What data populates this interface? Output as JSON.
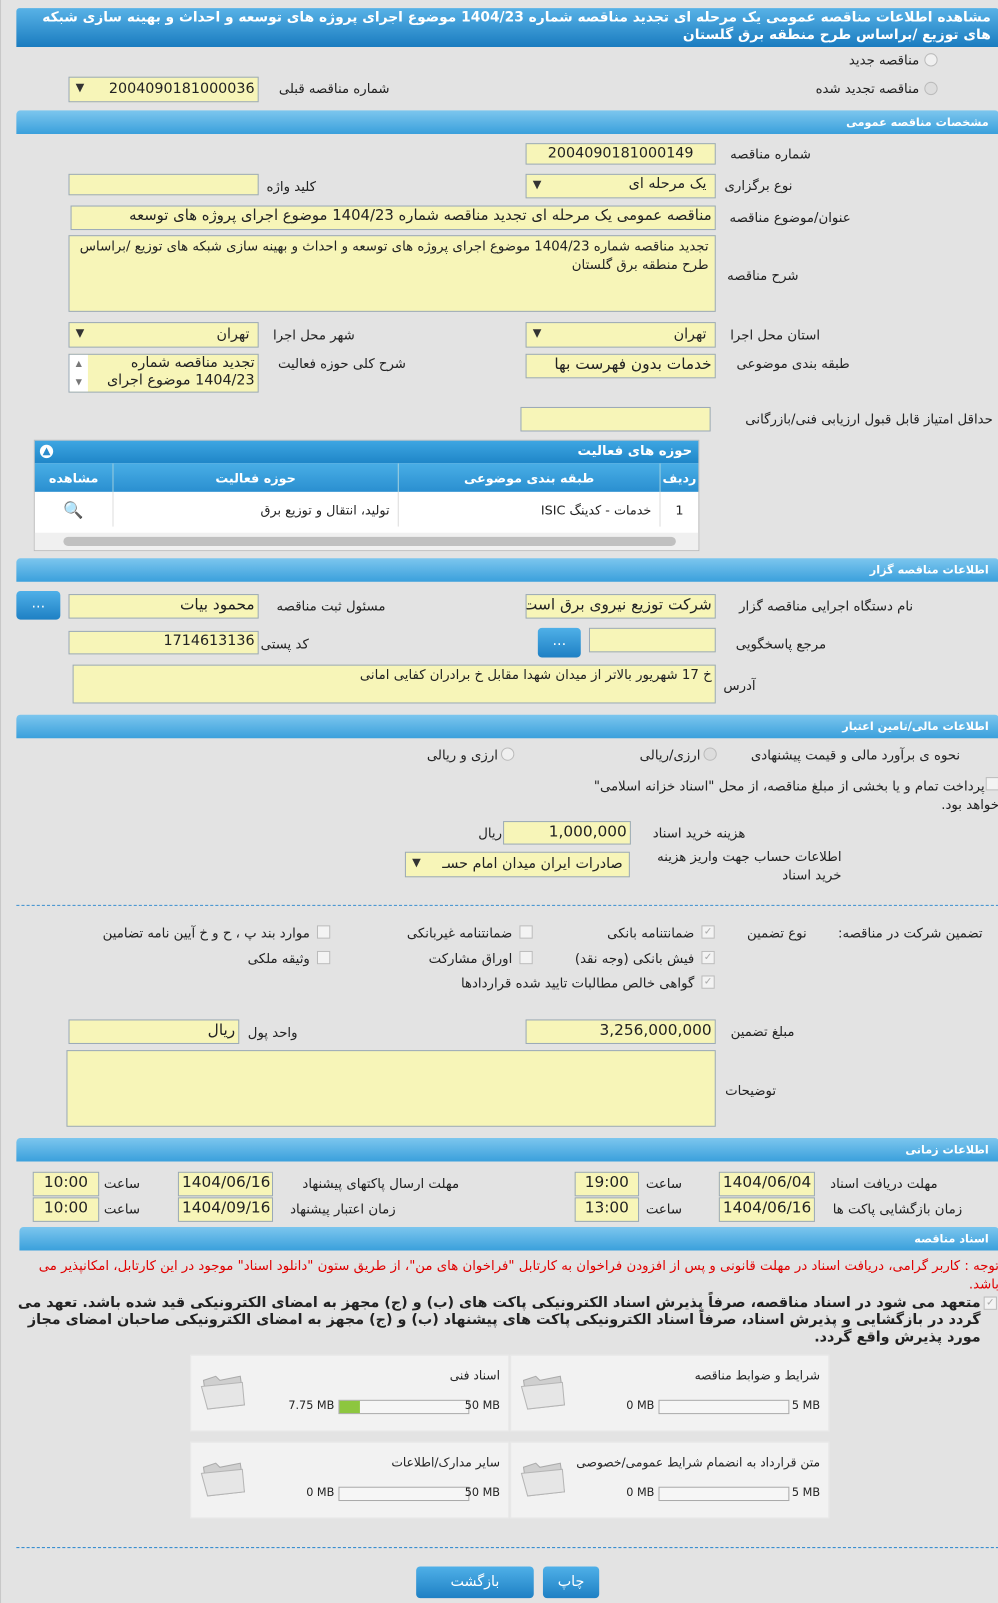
{
  "header": {
    "title": "مشاهده اطلاعات مناقصه عمومی یک مرحله ای تجدید مناقصه شماره 1404/23 موضوع اجرای پروژه های توسعه و احداث و بهینه سازی شبکه های توزیع /براساس طرح منطقه برق گلستان"
  },
  "tender_type": {
    "new_label": "مناقصه جدید",
    "renewed_label": "مناقصه تجدید شده",
    "selected": "renewed",
    "prev_number_label": "شماره مناقصه قبلی",
    "prev_number": "2004090181000036"
  },
  "general": {
    "section": "مشخصات مناقصه عمومی",
    "number_label": "شماره مناقصه",
    "number": "2004090181000149",
    "type_label": "نوع برگزاری",
    "type": "یک مرحله ای",
    "keyword_label": "کلید واژه",
    "keyword": "",
    "subject_label": "عنوان/موضوع مناقصه",
    "subject": "مناقصه عمومی یک مرحله ای تجدید مناقصه شماره 1404/23 موضوع اجرای پروژه های توسعه",
    "desc_label": "شرح مناقصه",
    "desc": "تجدید مناقصه شماره 1404/23 موضوع اجرای پروژه های توسعه و احداث و بهینه سازی شبکه های توزیع /براساس طرح منطقه برق گلستان",
    "province_label": "استان محل اجرا",
    "province": "تهران",
    "city_label": "شهر محل اجرا",
    "city": "تهران",
    "category_label": "طبقه بندی موضوعی",
    "category": "خدمات بدون فهرست بها",
    "activity_desc_label": "شرح کلی حوزه فعالیت",
    "activity_desc_line1": "تجدید مناقصه شماره",
    "activity_desc_line2": "1404/23 موضوع اجرای",
    "min_score_label": "حداقل امتیاز قابل قبول ارزیابی فنی/بازرگانی",
    "min_score": ""
  },
  "activities": {
    "title": "حوزه های فعالیت",
    "columns": [
      "ردیف",
      "طبقه بندی موضوعی",
      "حوزه فعالیت",
      "مشاهده"
    ],
    "rows": [
      {
        "idx": "1",
        "category": "خدمات - کدینگ ISIC",
        "field": "تولید، انتقال و توزیع برق"
      }
    ]
  },
  "organizer": {
    "section": "اطلاعات مناقصه گزار",
    "org_label": "نام دستگاه اجرایی مناقصه گزار",
    "org": "شرکت توزیع نیروی برق است",
    "officer_label": "مسئول ثبت مناقصه",
    "officer": "محمود  بیات",
    "ref_label": "مرجع پاسخگویی",
    "ref": "",
    "postal_label": "کد پستی",
    "postal": "1714613136",
    "address_label": "آدرس",
    "address": "خ 17 شهریور بالاتر از میدان شهدا مقابل خ برادران کفایی امانی",
    "more_button": "..."
  },
  "finance": {
    "section": "اطلاعات مالی/تامین اعتبار",
    "estimate_label": "نحوه ی برآورد مالی و قیمت پیشنهادی",
    "opt1": "ارزی/ریالی",
    "opt2": "ارزی و ریالی",
    "treasury_text": "پرداخت تمام و یا بخشی از مبلغ مناقصه، از محل \"اسناد خزانه اسلامی\"",
    "treasury_text2": "خواهد بود.",
    "doc_fee_label": "هزینه خرید اسناد",
    "doc_fee": "1,000,000",
    "doc_fee_unit": "ریال",
    "account_label": "اطلاعات حساب جهت واریز هزینه خرید اسناد",
    "account": "صادرات ایران میدان امام حسـ"
  },
  "guarantee": {
    "label": "تضمین شرکت در مناقصه:",
    "type_label": "نوع تضمین",
    "options": [
      {
        "label": "ضمانتنامه بانکی",
        "checked": true
      },
      {
        "label": "ضمانتنامه غیربانکی",
        "checked": false
      },
      {
        "label": "موارد بند پ ، ح و خ آیین نامه تضامین",
        "checked": false
      },
      {
        "label": "فیش بانکی (وجه نقد)",
        "checked": true
      },
      {
        "label": "اوراق مشارکت",
        "checked": false
      },
      {
        "label": "وثیقه ملکی",
        "checked": false
      },
      {
        "label": "گواهی خالص مطالبات تایید شده قراردادها",
        "checked": true
      }
    ],
    "amount_label": "مبلغ تضمین",
    "amount": "3,256,000,000",
    "currency_label": "واحد پول",
    "currency": "ریال",
    "notes_label": "توضیحات",
    "notes": ""
  },
  "timing": {
    "section": "اطلاعات زمانی",
    "time_label": "ساعت",
    "doc_deadline_label": "مهلت دریافت اسناد",
    "doc_deadline": "1404/06/04",
    "doc_deadline_time": "19:00",
    "submit_label": "مهلت ارسال پاکتهای پیشنهاد",
    "submit": "1404/06/16",
    "submit_time": "10:00",
    "opening_label": "زمان بازگشایی پاکت ها",
    "opening": "1404/06/16",
    "opening_time": "13:00",
    "validity_label": "زمان اعتبار پیشنهاد",
    "validity": "1404/09/16",
    "validity_time": "10:00"
  },
  "documents": {
    "section": "اسناد مناقصه",
    "notice": "توجه : کاربر گرامی، دریافت اسناد در مهلت قانونی و پس از افزودن فراخوان به کارتابل \"فراخوان های من\"، از طریق ستون \"دانلود اسناد\" موجود در این کارتابل، امکانپذیر می باشد.",
    "commitment": "متعهد می شود در اسناد مناقصه، صرفاً پذیرش اسناد الکترونیکی پاکت های (ب) و (ج) مجهز به امضای الکترونیکی قید شده باشد. تعهد می گردد در بازگشایی و پذیرش اسناد، صرفاً اسناد الکترونیکی پاکت های پیشنهاد (ب) و (ج) مجهز به امضای الکترونیکی صاحبان امضای مجاز مورد پذیرش واقع گردد.",
    "files": [
      {
        "name": "شرایط و ضوابط مناقصه",
        "used": "0 MB",
        "max": "5 MB",
        "fraction": 0
      },
      {
        "name": "اسناد فنی",
        "used": "7.75 MB",
        "max": "50 MB",
        "fraction": 0.155
      },
      {
        "name": "متن قرارداد به انضمام شرایط عمومی/خصوصی",
        "used": "0 MB",
        "max": "5 MB",
        "fraction": 0
      },
      {
        "name": "سایر مدارک/اطلاعات",
        "used": "0 MB",
        "max": "50 MB",
        "fraction": 0
      }
    ]
  },
  "actions": {
    "print": "چاپ",
    "back": "بازگشت"
  },
  "colors": {
    "section_bar": "#3aa0dc",
    "field_bg": "#f7f5b8",
    "notice": "#e00000",
    "progress": "#8dc63f"
  }
}
